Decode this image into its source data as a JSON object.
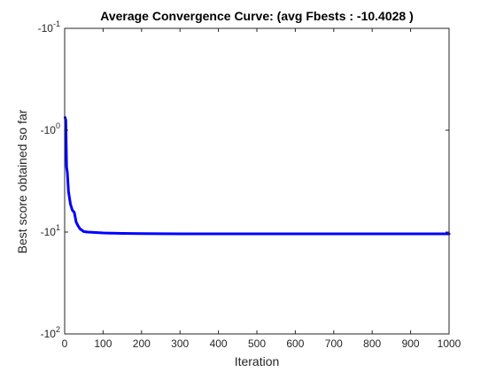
{
  "chart_data": {
    "type": "line",
    "title": "Average Convergence Curve: (avg Fbests : -10.4028 )",
    "xlabel": "Iteration",
    "ylabel": "Best score obtained so far",
    "xlim": [
      0,
      1000
    ],
    "ylim": [
      -100,
      -0.1
    ],
    "yscale": "symlog-negative",
    "grid": false,
    "x_ticks": [
      {
        "label": "0",
        "value": 0
      },
      {
        "label": "100",
        "value": 100
      },
      {
        "label": "200",
        "value": 200
      },
      {
        "label": "300",
        "value": 300
      },
      {
        "label": "400",
        "value": 400
      },
      {
        "label": "500",
        "value": 500
      },
      {
        "label": "600",
        "value": 600
      },
      {
        "label": "700",
        "value": 700
      },
      {
        "label": "800",
        "value": 800
      },
      {
        "label": "900",
        "value": 900
      },
      {
        "label": "1000",
        "value": 1000
      }
    ],
    "y_ticks": [
      {
        "base": "-10",
        "exp": "-1",
        "value": -0.1
      },
      {
        "base": "-10",
        "exp": "0",
        "value": -1
      },
      {
        "base": "-10",
        "exp": "1",
        "value": -10
      },
      {
        "base": "-10",
        "exp": "2",
        "value": -100
      }
    ],
    "series": [
      {
        "color": "#0000ff",
        "x": [
          1,
          3,
          5,
          7,
          10,
          15,
          20,
          25,
          30,
          35,
          40,
          50,
          60,
          80,
          100,
          120,
          150,
          200,
          300,
          400,
          500,
          600,
          700,
          800,
          900,
          1000
        ],
        "y": [
          -0.75,
          -0.8,
          -2.3,
          -2.6,
          -4.0,
          -5.3,
          -6.1,
          -6.4,
          -8.0,
          -8.7,
          -9.3,
          -9.9,
          -10.0,
          -10.1,
          -10.2,
          -10.25,
          -10.3,
          -10.35,
          -10.4,
          -10.4,
          -10.4,
          -10.4,
          -10.4,
          -10.4,
          -10.4,
          -10.4
        ]
      }
    ]
  }
}
